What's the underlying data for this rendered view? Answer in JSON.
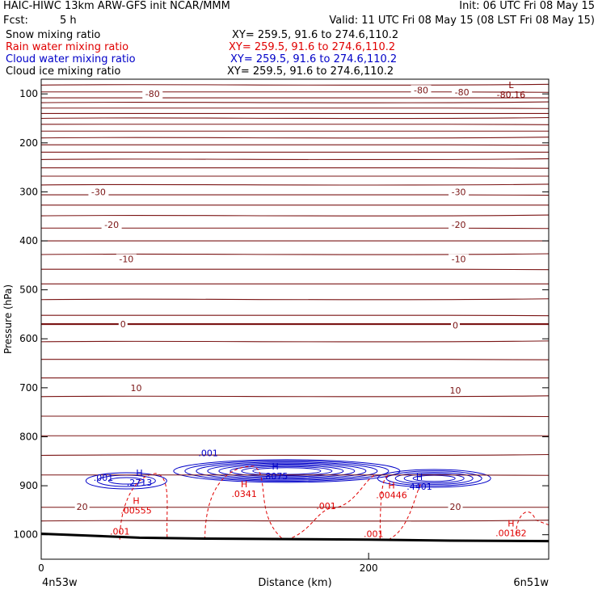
{
  "header": {
    "title_left": "HAIC-HIWC 13km ARW-GFS init   NCAR/MMM",
    "init": "Init: 06 UTC Fri 08 May 15",
    "fcst_label": "Fcst:",
    "fcst_value": "5 h",
    "valid": "Valid: 11 UTC Fri 08 May 15 (08 LST Fri 08 May 15)"
  },
  "legend": [
    {
      "label": "Snow mixing ratio",
      "xy": "XY= 259.5, 91.6 to 274.6,110.2",
      "color": "#000000"
    },
    {
      "label": "Rain water mixing ratio",
      "xy": "XY= 259.5, 91.6 to 274.6,110.2",
      "color": "#e00000"
    },
    {
      "label": "Cloud water mixing ratio",
      "xy": "XY= 259.5, 91.6 to 274.6,110.2",
      "color": "#0000c8"
    },
    {
      "label": "Cloud ice mixing ratio",
      "xy": "XY= 259.5, 91.6 to 274.6,110.2",
      "color": "#000000"
    }
  ],
  "chart_data": {
    "type": "line",
    "xlabel": "Distance (km)",
    "ylabel": "Pressure (hPa)",
    "xlim": [
      0,
      310
    ],
    "ylim": [
      1050,
      70
    ],
    "x_ticks": [
      0,
      200
    ],
    "y_ticks": [
      100,
      200,
      300,
      400,
      500,
      600,
      700,
      800,
      900,
      1000
    ],
    "x_endpoints": [
      "4n53w",
      "6n51w"
    ],
    "temperature_isotherm_levels": [
      82,
      96,
      108,
      118,
      129,
      140,
      150,
      162,
      176,
      190,
      204,
      219,
      234,
      251,
      268,
      286,
      306,
      327,
      349,
      374,
      400,
      428,
      458,
      488,
      520,
      552,
      570,
      606,
      642,
      680,
      718,
      758,
      798,
      838,
      878,
      944,
      972
    ],
    "temperature_labels": [
      {
        "text": "-80",
        "x": 68,
        "p": 100
      },
      {
        "text": "-80",
        "x": 232,
        "p": 92
      },
      {
        "text": "-80",
        "x": 257,
        "p": 96
      },
      {
        "text": "-30",
        "x": 35,
        "p": 300
      },
      {
        "text": "-30",
        "x": 255,
        "p": 300
      },
      {
        "text": "-20",
        "x": 43,
        "p": 367
      },
      {
        "text": "-20",
        "x": 255,
        "p": 367
      },
      {
        "text": "-10",
        "x": 52,
        "p": 437
      },
      {
        "text": "-10",
        "x": 255,
        "p": 437
      },
      {
        "text": "0",
        "x": 50,
        "p": 570
      },
      {
        "text": "0",
        "x": 253,
        "p": 572
      },
      {
        "text": "10",
        "x": 58,
        "p": 700
      },
      {
        "text": "10",
        "x": 253,
        "p": 705
      },
      {
        "text": "20",
        "x": 25,
        "p": 943
      },
      {
        "text": "20",
        "x": 253,
        "p": 943
      }
    ],
    "extrema_labels": [
      {
        "text": "L",
        "value": "-80.16",
        "x": 287,
        "p": 88,
        "color": "#800000"
      },
      {
        "text": "H",
        "value": ".2713",
        "x": 60,
        "p": 880,
        "color": "#0000c8"
      },
      {
        "text": "H",
        "value": ".8075",
        "x": 143,
        "p": 867,
        "color": "#0000c8"
      },
      {
        "text": "H",
        "value": ".4401",
        "x": 231,
        "p": 888,
        "color": "#0000c8"
      },
      {
        "text": "H",
        "value": ".0341",
        "x": 124,
        "p": 903,
        "color": "#e00000"
      },
      {
        "text": "H",
        "value": ".00555",
        "x": 58,
        "p": 937,
        "color": "#e00000"
      },
      {
        "text": "H",
        "value": ".00446",
        "x": 214,
        "p": 906,
        "color": "#e00000"
      },
      {
        "text": "H",
        "value": ".00182",
        "x": 287,
        "p": 983,
        "color": "#e00000"
      }
    ],
    "cloud_water_labels": [
      {
        "text": ".001",
        "x": 38,
        "p": 890
      },
      {
        "text": ".001",
        "x": 102,
        "p": 840
      }
    ],
    "rain_labels": [
      {
        "text": ".001",
        "x": 48,
        "p": 1000
      },
      {
        "text": ".001",
        "x": 174,
        "p": 948
      },
      {
        "text": ".001",
        "x": 203,
        "p": 1005
      }
    ],
    "surface_pressure": {
      "x": [
        0,
        30,
        60,
        100,
        200,
        250,
        310
      ],
      "p": [
        998,
        1002,
        1006,
        1008,
        1010,
        1012,
        1013
      ]
    }
  }
}
